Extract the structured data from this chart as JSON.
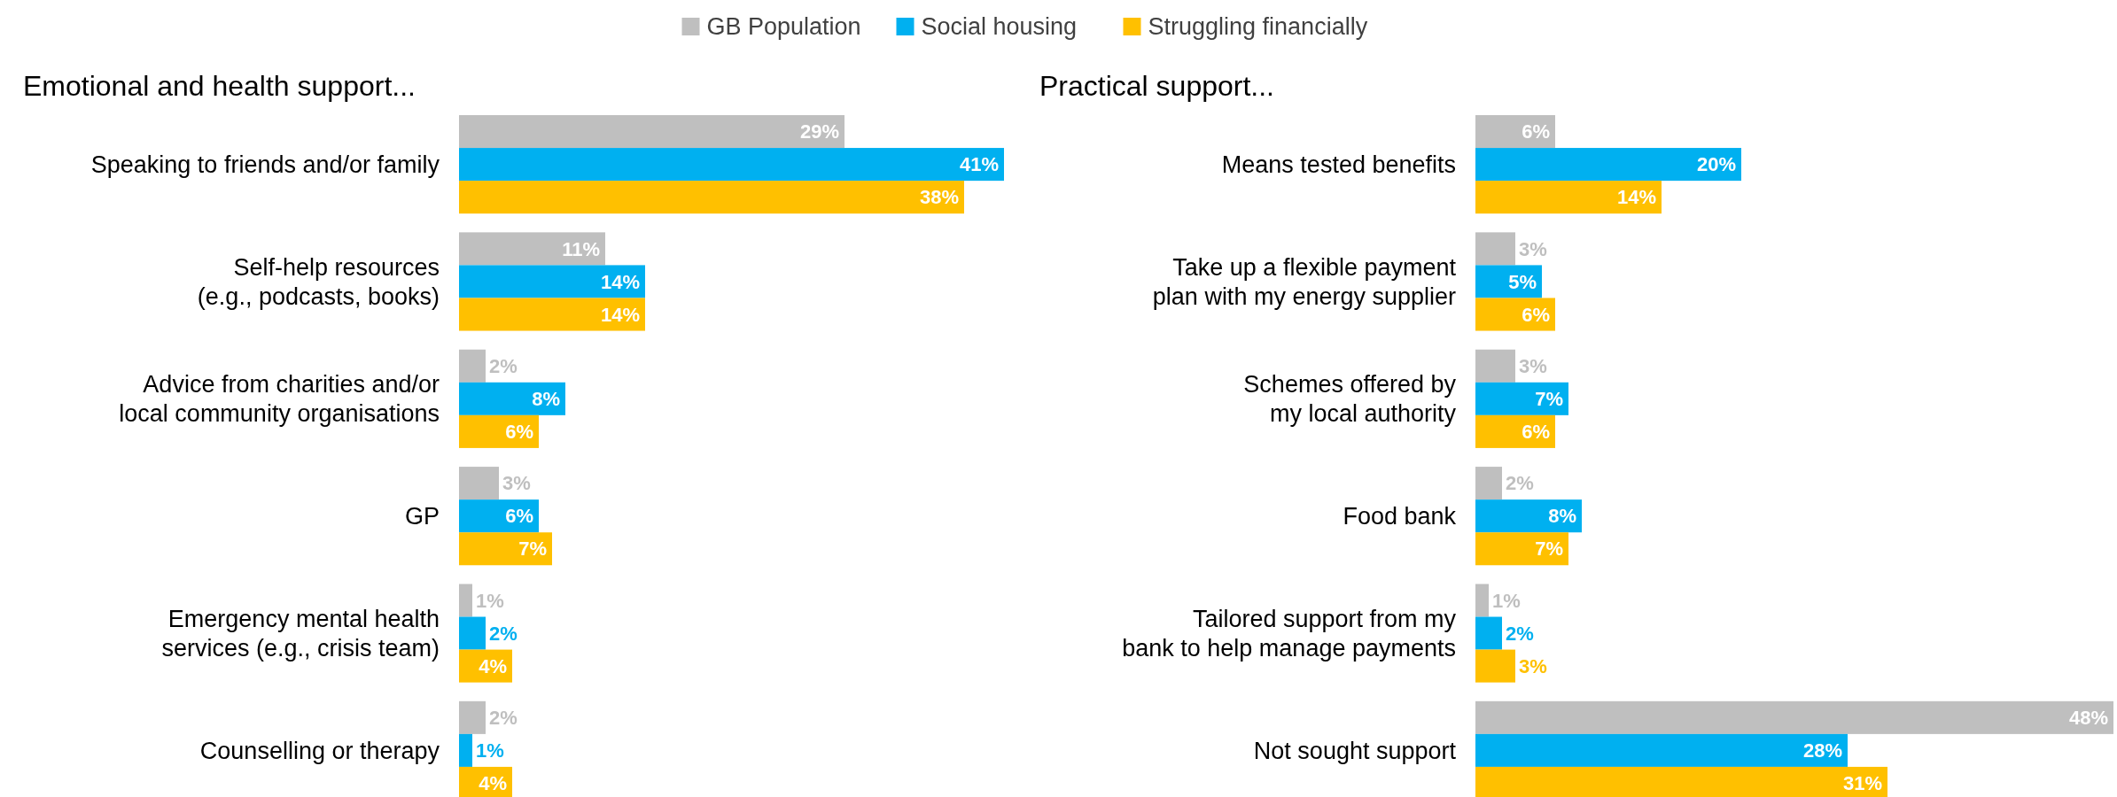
{
  "chart_data": [
    {
      "type": "bar",
      "orientation": "horizontal",
      "title": "Emotional and health support...",
      "legend": "top",
      "categories": [
        "Speaking to friends and/or family",
        "Self-help resources (e.g., podcasts, books)",
        "Advice from charities and/or local community organisations",
        "GP",
        "Emergency mental health services (e.g., crisis team)",
        "Counselling or therapy"
      ],
      "series": [
        {
          "name": "GB Population",
          "color": "#bfbfbf",
          "values": [
            29,
            11,
            2,
            3,
            1,
            2
          ],
          "value_labels": [
            "29%",
            "11%",
            "2%",
            "3%",
            "1%",
            "2%"
          ]
        },
        {
          "name": "Social housing",
          "color": "#00b0f0",
          "values": [
            41,
            14,
            8,
            6,
            2,
            1
          ],
          "value_labels": [
            "41%",
            "14%",
            "8%",
            "6%",
            "2%",
            "1%"
          ]
        },
        {
          "name": "Struggling financially",
          "color": "#ffc000",
          "values": [
            38,
            14,
            6,
            7,
            4,
            4
          ],
          "value_labels": [
            "38%",
            "14%",
            "6%",
            "7%",
            "4%",
            "4%"
          ]
        }
      ]
    },
    {
      "type": "bar",
      "orientation": "horizontal",
      "title": "Practical support...",
      "categories": [
        "Means tested benefits",
        "Take up a flexible payment plan with my energy supplier",
        "Schemes offered by my local authority",
        "Food bank",
        "Tailored support from my bank to help manage payments",
        "Not sought support"
      ],
      "series": [
        {
          "color": "#bfbfbf",
          "values": [
            6,
            3,
            3,
            2,
            1,
            48
          ],
          "value_labels": [
            "6%",
            "3%",
            "3%",
            "2%",
            "1%",
            "48%"
          ]
        },
        {
          "color": "#00b0f0",
          "values": [
            20,
            5,
            7,
            8,
            2,
            28
          ],
          "value_labels": [
            "20%",
            "5%",
            "7%",
            "8%",
            "2%",
            "28%"
          ]
        },
        {
          "color": "#ffc000",
          "values": [
            14,
            6,
            6,
            7,
            3,
            31
          ],
          "value_labels": [
            "14%",
            "6%",
            "6%",
            "7%",
            "3%",
            "31%"
          ]
        }
      ]
    }
  ]
}
